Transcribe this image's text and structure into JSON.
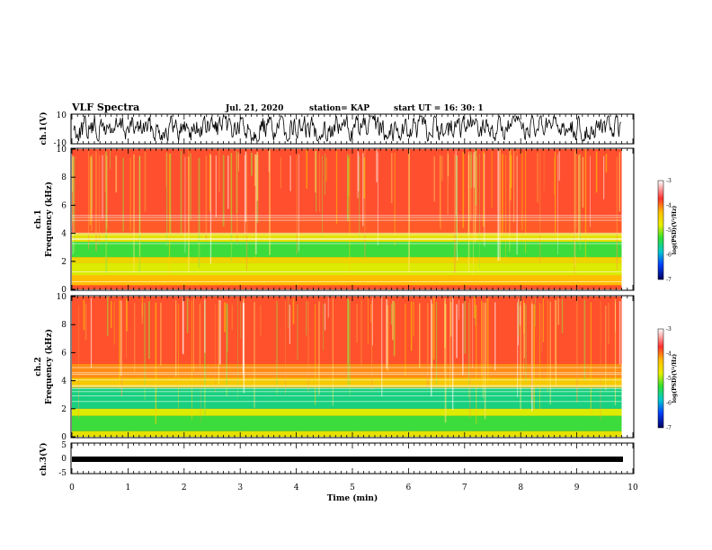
{
  "header": {
    "title": "VLF Spectra",
    "date": "Jul. 21, 2020",
    "station": "station= KAP",
    "start": "start UT =  16: 30: 1"
  },
  "chart_data": [
    {
      "type": "line",
      "title": "",
      "ylabel": "ch.1(V)",
      "xlim": [
        0,
        10
      ],
      "ylim": [
        -10,
        10
      ],
      "yticks": [
        "10",
        "-10"
      ],
      "series": [
        {
          "description_kind": "waveform",
          "x_range": [
            0,
            9.8
          ],
          "amplitude": 10
        }
      ]
    },
    {
      "type": "heatmap",
      "ylabel": "ch.1\nFrequency (kHz)",
      "ylabel_line1": "ch.1",
      "ylabel_line2": "Frequency (kHz)",
      "xlim": [
        0,
        10
      ],
      "ylim": [
        0,
        10
      ],
      "yticks": [
        "0",
        "2",
        "4",
        "6",
        "8",
        "10"
      ],
      "x_data_end": 9.8,
      "colorbar": {
        "label": "log(PSD)(V²/Hz)",
        "ticks": [
          "-3",
          "-4",
          "-5",
          "-6",
          "-7"
        ],
        "range": [
          -7,
          -3
        ]
      },
      "bands_psd": [
        {
          "f": [
            0,
            0.3
          ],
          "psd": -3.5
        },
        {
          "f": [
            0.3,
            1.0
          ],
          "psd": -4.1
        },
        {
          "f": [
            1.0,
            1.9
          ],
          "psd": -4.5
        },
        {
          "f": [
            1.9,
            2.3
          ],
          "psd": -4.3
        },
        {
          "f": [
            2.3,
            3.4
          ],
          "psd": -5.0
        },
        {
          "f": [
            3.4,
            4.0
          ],
          "psd": -4.4
        },
        {
          "f": [
            4.0,
            5.2
          ],
          "psd": -3.7
        },
        {
          "f": [
            5.2,
            10
          ],
          "psd": -3.3
        }
      ]
    },
    {
      "type": "heatmap",
      "ylabel": "ch.2\nFrequency (kHz)",
      "ylabel_line1": "ch.2",
      "ylabel_line2": "Frequency (kHz)",
      "xlim": [
        0,
        10
      ],
      "ylim": [
        0,
        10
      ],
      "yticks": [
        "0",
        "2",
        "4",
        "6",
        "8",
        "10"
      ],
      "x_data_end": 9.8,
      "colorbar": {
        "label": "log(PSD)(V²/Hz)",
        "ticks": [
          "-3",
          "-4",
          "-5",
          "-6",
          "-7"
        ],
        "range": [
          -7,
          -3
        ]
      },
      "bands_psd": [
        {
          "f": [
            0,
            0.4
          ],
          "psd": -4.4
        },
        {
          "f": [
            0.4,
            1.5
          ],
          "psd": -5.0
        },
        {
          "f": [
            1.5,
            2.0
          ],
          "psd": -4.5
        },
        {
          "f": [
            2.0,
            3.5
          ],
          "psd": -5.3
        },
        {
          "f": [
            3.5,
            4.2
          ],
          "psd": -4.2
        },
        {
          "f": [
            4.2,
            5.2
          ],
          "psd": -3.9
        },
        {
          "f": [
            5.2,
            10
          ],
          "psd": -3.4
        }
      ]
    },
    {
      "type": "line",
      "ylabel": "ch.3(V)",
      "xlim": [
        0,
        10
      ],
      "ylim": [
        -5,
        5
      ],
      "yticks": [
        "5",
        "0",
        "-5"
      ],
      "series": [
        {
          "description_kind": "near-constant",
          "level": -1.5,
          "x_range": [
            0,
            9.8
          ]
        }
      ]
    }
  ],
  "xaxis": {
    "label": "Time (min)",
    "ticks": [
      "0",
      "1",
      "2",
      "3",
      "4",
      "5",
      "6",
      "7",
      "8",
      "9",
      "10"
    ]
  }
}
